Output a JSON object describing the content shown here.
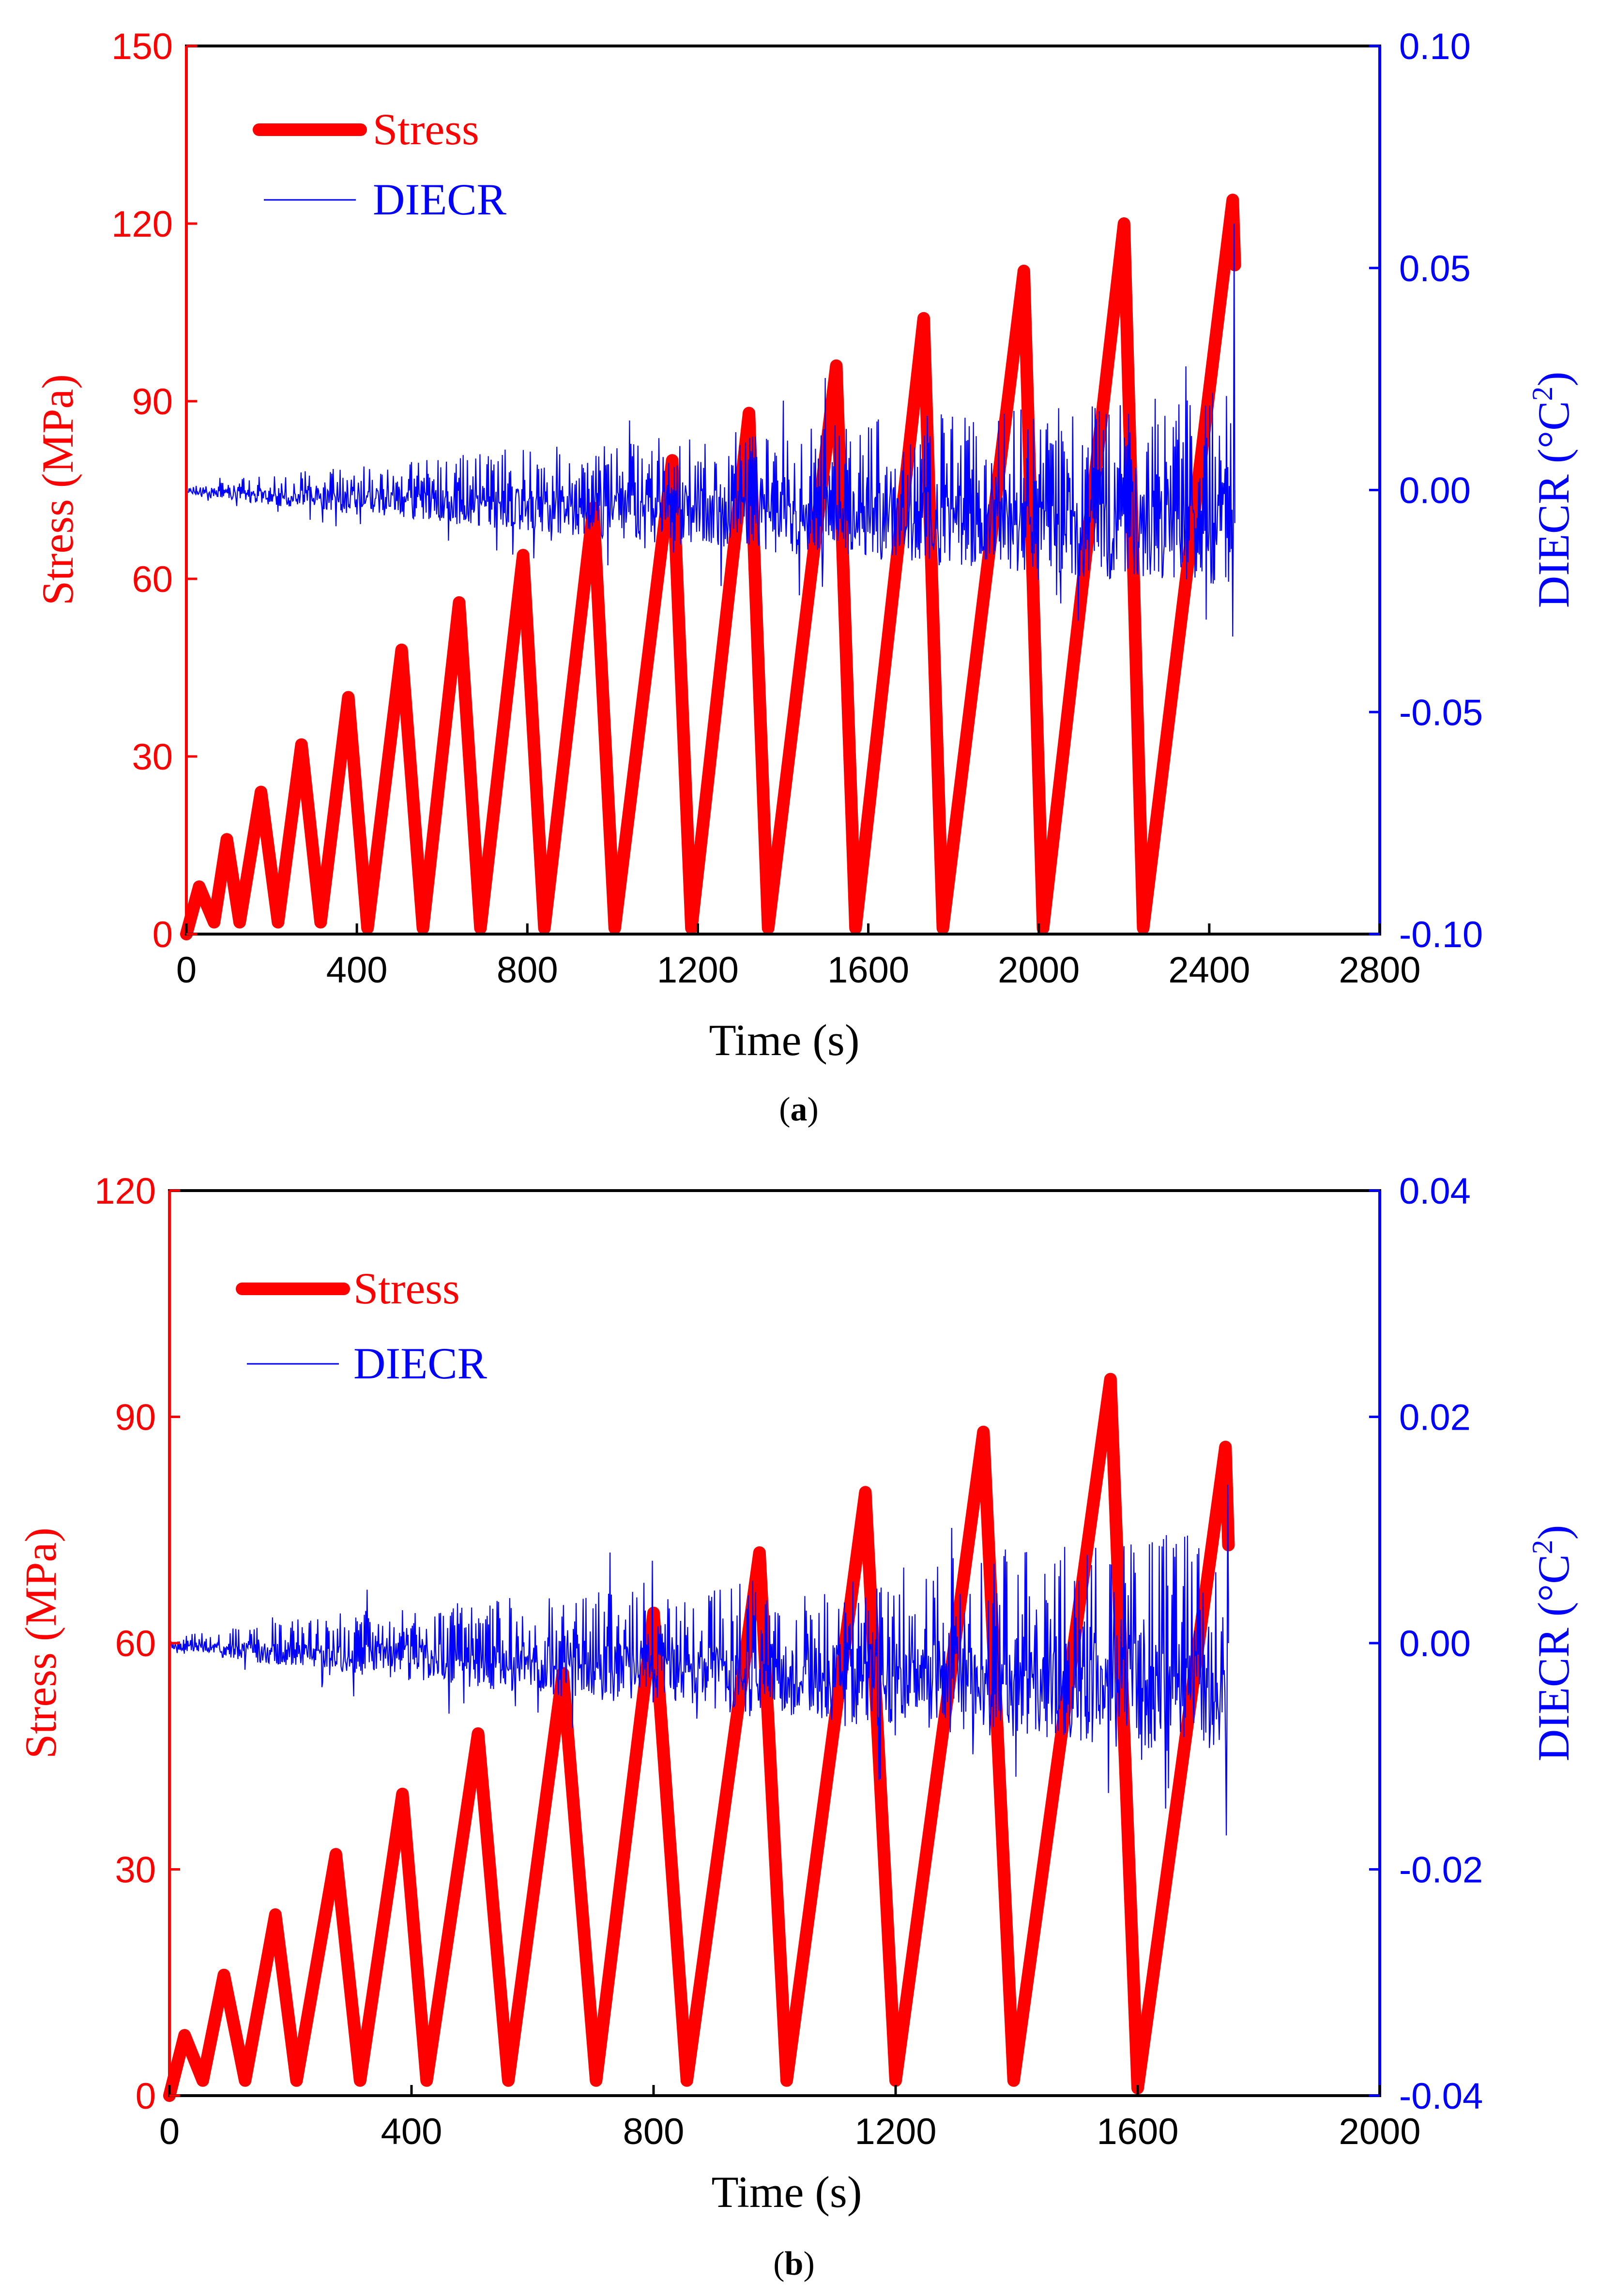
{
  "colors": {
    "stress": "#ff0000",
    "diecr": "#0000ff",
    "axis": "#000000"
  },
  "chart_data": [
    {
      "type": "line",
      "panel": "a",
      "caption_open": "(",
      "caption_letter": "a",
      "caption_close": ")",
      "xlabel": "Time (s)",
      "ylabel_left": "Stress (MPa)",
      "ylabel_right_main": "DIECR (°C",
      "ylabel_right_sup": "2",
      "ylabel_right_close": ")",
      "xlim": [
        0,
        2800
      ],
      "ylim_left": [
        0,
        150
      ],
      "ylim_right": [
        -0.1,
        0.1
      ],
      "xticks": [
        0,
        400,
        800,
        1200,
        1600,
        2000,
        2400,
        2800
      ],
      "yticks_left": [
        0,
        30,
        60,
        90,
        120,
        150
      ],
      "yticks_right": [
        "-0.10",
        "-0.05",
        "0.00",
        "0.05",
        "0.10"
      ],
      "yticks_right_values": [
        -0.1,
        -0.05,
        0.0,
        0.05,
        0.1
      ],
      "legend": [
        "Stress",
        "DIECR"
      ],
      "series": [
        {
          "name": "Stress",
          "x": [
            0,
            30,
            65,
            95,
            125,
            175,
            215,
            270,
            315,
            380,
            425,
            505,
            555,
            640,
            690,
            790,
            840,
            955,
            1005,
            1140,
            1185,
            1320,
            1365,
            1525,
            1570,
            1730,
            1775,
            1965,
            2010,
            2200,
            2245,
            2455,
            2460
          ],
          "values": [
            0,
            8,
            2,
            16,
            2,
            24,
            2,
            32,
            2,
            40,
            1,
            48,
            1,
            56,
            1,
            64,
            1,
            72,
            1,
            80,
            1,
            88,
            1,
            96,
            1,
            104,
            1,
            112,
            1,
            120,
            1,
            124,
            113
          ]
        },
        {
          "name": "DIECR",
          "t_end": 2460,
          "amplitude_start": 0.0005,
          "amplitude_end": 0.022,
          "peak_positive": 0.06,
          "peak_negative": -0.033
        }
      ]
    },
    {
      "type": "line",
      "panel": "b",
      "caption_open": "(",
      "caption_letter": "b",
      "caption_close": ")",
      "xlabel": "Time (s)",
      "ylabel_left": "Stress (MPa)",
      "ylabel_right_main": "DIECR (°C",
      "ylabel_right_sup": "2",
      "ylabel_right_close": ")",
      "xlim": [
        0,
        2000
      ],
      "ylim_left": [
        0,
        120
      ],
      "ylim_right": [
        -0.04,
        0.04
      ],
      "xticks": [
        0,
        400,
        800,
        1200,
        1600,
        2000
      ],
      "yticks_left": [
        0,
        30,
        60,
        90,
        120
      ],
      "yticks_right": [
        "-0.04",
        "-0.02",
        "0.00",
        "0.02",
        "0.04"
      ],
      "yticks_right_values": [
        -0.04,
        -0.02,
        0.0,
        0.02,
        0.04
      ],
      "legend": [
        "Stress",
        "DIECR"
      ],
      "series": [
        {
          "name": "Stress",
          "x": [
            0,
            25,
            55,
            90,
            125,
            175,
            210,
            275,
            315,
            385,
            425,
            510,
            560,
            650,
            705,
            800,
            855,
            975,
            1020,
            1150,
            1200,
            1345,
            1395,
            1555,
            1600,
            1745,
            1750
          ],
          "values": [
            0,
            8,
            2,
            16,
            2,
            24,
            2,
            32,
            2,
            40,
            2,
            48,
            2,
            56,
            2,
            64,
            2,
            72,
            2,
            80,
            2,
            88,
            2,
            95,
            1,
            86,
            73
          ]
        },
        {
          "name": "DIECR",
          "t_end": 1750,
          "amplitude_start": 0.0004,
          "amplitude_end": 0.01,
          "peak_positive": 0.014,
          "peak_negative": -0.017
        }
      ]
    }
  ]
}
